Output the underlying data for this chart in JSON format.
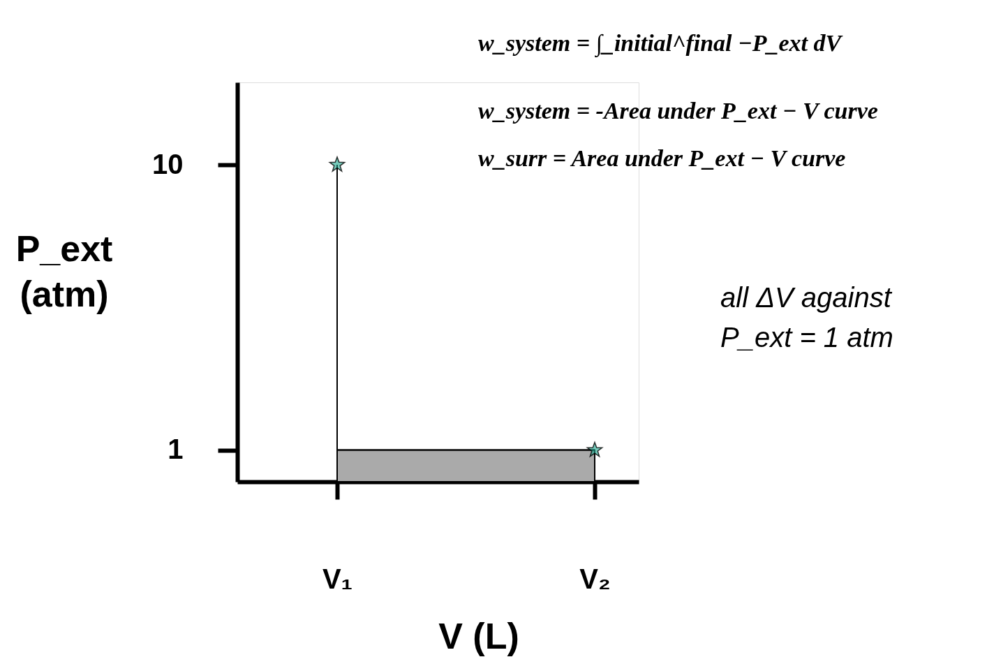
{
  "chart_data": {
    "type": "line",
    "xlabel": "V (L)",
    "ylabel": "P_ext\n(atm)",
    "categories": [
      "V₁",
      "V₂"
    ],
    "series": [
      {
        "type": "area",
        "color": "#aaaaaa",
        "values": [
          1,
          1
        ]
      },
      {
        "type": "step",
        "color": "#000000",
        "values": [
          10,
          1
        ],
        "marker": "star"
      }
    ],
    "ylim": [
      0,
      12.6
    ],
    "yticks": [
      1,
      10
    ],
    "grid": false,
    "annotations": [
      "w_system = ∫_initial^final −P_ext dV",
      "w_system = -Area under P_ext − V curve",
      "w_surr = Area under P_ext − V curve",
      "all ΔV against\nP_ext = 1 atm"
    ]
  }
}
